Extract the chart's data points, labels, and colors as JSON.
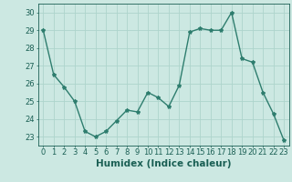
{
  "x": [
    0,
    1,
    2,
    3,
    4,
    5,
    6,
    7,
    8,
    9,
    10,
    11,
    12,
    13,
    14,
    15,
    16,
    17,
    18,
    19,
    20,
    21,
    22,
    23
  ],
  "y": [
    29,
    26.5,
    25.8,
    25.0,
    23.3,
    23.0,
    23.3,
    23.9,
    24.5,
    24.4,
    25.5,
    25.2,
    24.7,
    25.9,
    28.9,
    29.1,
    29.0,
    29.0,
    30.0,
    27.4,
    27.2,
    25.5,
    24.3,
    22.8
  ],
  "line_color": "#2e7d6e",
  "marker": "*",
  "marker_size": 3,
  "xlabel": "Humidex (Indice chaleur)",
  "xlim": [
    -0.5,
    23.5
  ],
  "ylim": [
    22.5,
    30.5
  ],
  "yticks": [
    23,
    24,
    25,
    26,
    27,
    28,
    29,
    30
  ],
  "xticks": [
    0,
    1,
    2,
    3,
    4,
    5,
    6,
    7,
    8,
    9,
    10,
    11,
    12,
    13,
    14,
    15,
    16,
    17,
    18,
    19,
    20,
    21,
    22,
    23
  ],
  "grid_color": "#aed4cc",
  "bg_color": "#cce8e2",
  "label_color": "#1a5f54",
  "tick_color": "#1a5f54",
  "xlabel_fontsize": 7.5,
  "tick_fontsize": 6,
  "linewidth": 1.0
}
